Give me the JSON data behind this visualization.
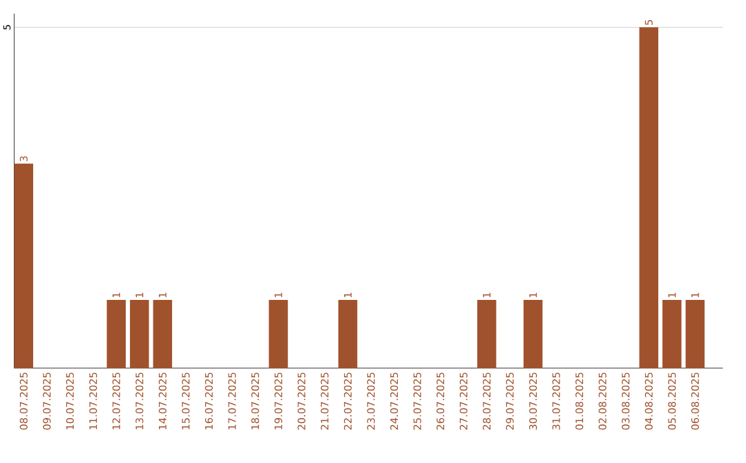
{
  "chart_data": {
    "type": "bar",
    "categories": [
      "08.07.2025",
      "09.07.2025",
      "10.07.2025",
      "11.07.2025",
      "12.07.2025",
      "13.07.2025",
      "14.07.2025",
      "15.07.2025",
      "16.07.2025",
      "17.07.2025",
      "18.07.2025",
      "19.07.2025",
      "20.07.2025",
      "21.07.2025",
      "22.07.2025",
      "23.07.2025",
      "24.07.2025",
      "25.07.2025",
      "26.07.2025",
      "27.07.2025",
      "28.07.2025",
      "29.07.2025",
      "30.07.2025",
      "31.07.2025",
      "01.08.2025",
      "02.08.2025",
      "03.08.2025",
      "04.08.2025",
      "05.08.2025",
      "06.08.2025"
    ],
    "values": [
      3,
      0,
      0,
      0,
      1,
      1,
      1,
      0,
      0,
      0,
      0,
      1,
      0,
      0,
      1,
      0,
      0,
      0,
      0,
      0,
      1,
      0,
      1,
      0,
      0,
      0,
      0,
      5,
      1,
      1
    ],
    "value_labels": [
      "3",
      null,
      null,
      null,
      "1",
      "1",
      "1",
      null,
      null,
      null,
      null,
      "1",
      null,
      null,
      "1",
      null,
      null,
      null,
      null,
      null,
      "1",
      null,
      "1",
      null,
      null,
      null,
      null,
      "5",
      "1",
      "1"
    ],
    "color": "#a0522d",
    "ylim": [
      0,
      5.2
    ],
    "yticks": [
      5
    ],
    "grid": "y"
  }
}
